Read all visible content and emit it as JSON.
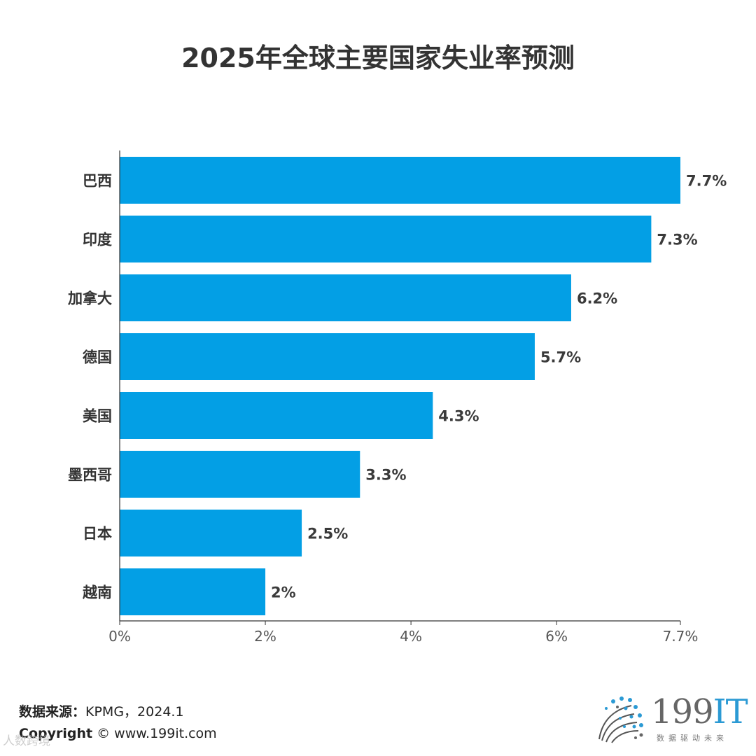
{
  "title": "2025年全球主要国家失业率预测",
  "chart_data": {
    "type": "bar",
    "orientation": "horizontal",
    "title": "2025年全球主要国家失业率预测",
    "categories": [
      "巴西",
      "印度",
      "加拿大",
      "德国",
      "美国",
      "墨西哥",
      "日本",
      "越南"
    ],
    "values": [
      7.7,
      7.3,
      6.2,
      5.7,
      4.3,
      3.3,
      2.5,
      2.0
    ],
    "data_labels": [
      "7.7%",
      "7.3%",
      "6.2%",
      "5.7%",
      "4.3%",
      "3.3%",
      "2.5%",
      "2%"
    ],
    "xlim": [
      0,
      7.7
    ],
    "xticks": [
      0,
      2,
      4,
      6,
      7.7
    ],
    "xtick_labels": [
      "0%",
      "2%",
      "4%",
      "6%",
      "7.7%"
    ],
    "xlabel": "",
    "ylabel": "",
    "bar_color": "#039fe5",
    "grid": false
  },
  "footer": {
    "source_label": "数据来源：",
    "source_value": "KPMG，2024.1",
    "copyright_label": "Copyright",
    "copyright_value": "© www.199it.com"
  },
  "watermark": "人数跨境",
  "logo": {
    "word_main": "199",
    "word_accent": "IT",
    "tagline": "数据驱动未来",
    "accent_color": "#2b9ad4"
  }
}
